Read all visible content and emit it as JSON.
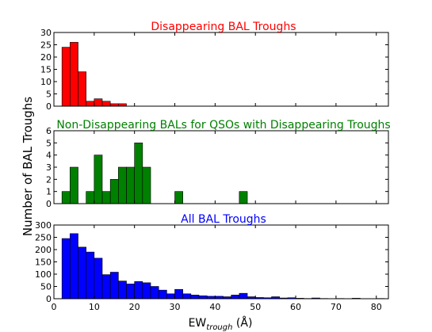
{
  "figure": {
    "ylabel": "Number of BAL Troughs",
    "xlabel_main": "EW",
    "xlabel_sub": "trough",
    "xlabel_unit": " (Å)"
  },
  "chart_data": [
    {
      "type": "bar",
      "title": "Disappearing BAL Troughs",
      "title_color": "#ff0000",
      "bar_color": "#ff0000",
      "bin_width": 2,
      "xlim": [
        0,
        83
      ],
      "ylim": [
        0,
        30
      ],
      "yticks": [
        0,
        5,
        10,
        15,
        20,
        25,
        30
      ],
      "bins": [
        {
          "x0": 2,
          "value": 24
        },
        {
          "x0": 4,
          "value": 26
        },
        {
          "x0": 6,
          "value": 14
        },
        {
          "x0": 8,
          "value": 2
        },
        {
          "x0": 10,
          "value": 3
        },
        {
          "x0": 12,
          "value": 2
        },
        {
          "x0": 14,
          "value": 1
        },
        {
          "x0": 16,
          "value": 1
        }
      ]
    },
    {
      "type": "bar",
      "title": "Non-Disappearing BALs for QSOs with Disappearing Troughs",
      "title_color": "#008000",
      "bar_color": "#008000",
      "bin_width": 2,
      "xlim": [
        0,
        83
      ],
      "ylim": [
        0,
        6
      ],
      "yticks": [
        0,
        1,
        2,
        3,
        4,
        5,
        6
      ],
      "bins": [
        {
          "x0": 2,
          "value": 1
        },
        {
          "x0": 4,
          "value": 3
        },
        {
          "x0": 6,
          "value": 0
        },
        {
          "x0": 8,
          "value": 1
        },
        {
          "x0": 10,
          "value": 4
        },
        {
          "x0": 12,
          "value": 1
        },
        {
          "x0": 14,
          "value": 2
        },
        {
          "x0": 16,
          "value": 3
        },
        {
          "x0": 18,
          "value": 3
        },
        {
          "x0": 20,
          "value": 5
        },
        {
          "x0": 22,
          "value": 3
        },
        {
          "x0": 30,
          "value": 1
        },
        {
          "x0": 46,
          "value": 1
        }
      ]
    },
    {
      "type": "bar",
      "title": "All BAL Troughs",
      "title_color": "#0000ff",
      "bar_color": "#0000ff",
      "bin_width": 2,
      "xlim": [
        0,
        83
      ],
      "ylim": [
        0,
        300
      ],
      "yticks": [
        0,
        50,
        100,
        150,
        200,
        250,
        300
      ],
      "xticks": [
        0,
        10,
        20,
        30,
        40,
        50,
        60,
        70,
        80
      ],
      "bins": [
        {
          "x0": 2,
          "value": 245
        },
        {
          "x0": 4,
          "value": 265
        },
        {
          "x0": 6,
          "value": 210
        },
        {
          "x0": 8,
          "value": 190
        },
        {
          "x0": 10,
          "value": 165
        },
        {
          "x0": 12,
          "value": 98
        },
        {
          "x0": 14,
          "value": 108
        },
        {
          "x0": 16,
          "value": 72
        },
        {
          "x0": 18,
          "value": 60
        },
        {
          "x0": 20,
          "value": 70
        },
        {
          "x0": 22,
          "value": 65
        },
        {
          "x0": 24,
          "value": 50
        },
        {
          "x0": 26,
          "value": 35
        },
        {
          "x0": 28,
          "value": 20
        },
        {
          "x0": 30,
          "value": 38
        },
        {
          "x0": 32,
          "value": 20
        },
        {
          "x0": 34,
          "value": 15
        },
        {
          "x0": 36,
          "value": 12
        },
        {
          "x0": 38,
          "value": 10
        },
        {
          "x0": 40,
          "value": 10
        },
        {
          "x0": 42,
          "value": 8
        },
        {
          "x0": 44,
          "value": 15
        },
        {
          "x0": 46,
          "value": 22
        },
        {
          "x0": 48,
          "value": 8
        },
        {
          "x0": 50,
          "value": 5
        },
        {
          "x0": 52,
          "value": 4
        },
        {
          "x0": 54,
          "value": 8
        },
        {
          "x0": 56,
          "value": 3
        },
        {
          "x0": 58,
          "value": 4
        },
        {
          "x0": 60,
          "value": 2
        },
        {
          "x0": 62,
          "value": 1
        },
        {
          "x0": 64,
          "value": 3
        },
        {
          "x0": 66,
          "value": 1
        },
        {
          "x0": 70,
          "value": 1
        },
        {
          "x0": 74,
          "value": 2
        },
        {
          "x0": 80,
          "value": 1
        }
      ]
    }
  ]
}
